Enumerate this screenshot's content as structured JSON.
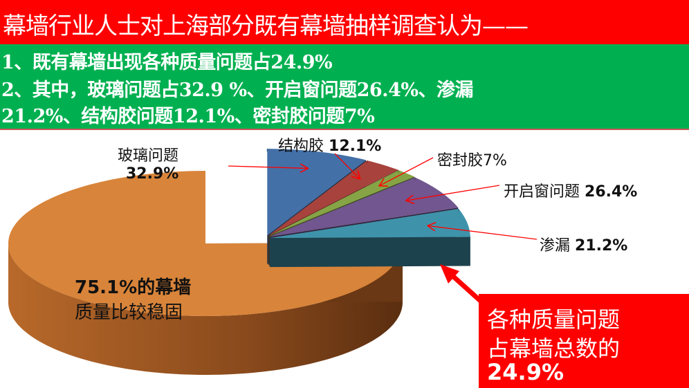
{
  "title": "幕墙行业人士对上海部分既有幕墙抽样调查认为——",
  "summary": {
    "line1": "1、既有幕墙出现各种质量问题占24.9%",
    "line2": "2、其中，玻璃问题占32.9 %、开启窗问题26.4%、渗漏",
    "line3": "21.2%、结构胶问题12.1%、密封胶问题7%"
  },
  "chart_data": {
    "type": "pie",
    "style": "3d-exploded",
    "main": [
      {
        "name": "质量比较稳固",
        "value": 75.1,
        "color": "#d8843a"
      },
      {
        "name": "各种质量问题",
        "value": 24.9
      }
    ],
    "breakdown": [
      {
        "name": "玻璃问题",
        "value": 32.9,
        "color": "#4470a8"
      },
      {
        "name": "结构胶",
        "value": 12.1,
        "color": "#a8423d"
      },
      {
        "name": "密封胶",
        "value": 7,
        "color": "#86a446"
      },
      {
        "name": "开启窗问题",
        "value": 26.4,
        "color": "#71568f"
      },
      {
        "name": "渗漏",
        "value": 21.2,
        "color": "#3e93aa"
      }
    ],
    "labels": {
      "glass_name": "玻璃问题",
      "glass_value": "32.9%",
      "struct_name": "结构胶",
      "struct_value": "12.1%",
      "seal": "密封胶7%",
      "window_name": "开启窗问题",
      "window_value": "26.4%",
      "leak_name": "渗漏",
      "leak_value": "21.2%",
      "stable_line1": "75.1%的幕墙",
      "stable_line2": "质量比较稳固"
    }
  },
  "callout": {
    "line1": "各种质量问题",
    "line2": "占幕墙总数的",
    "line3": "24.9%",
    "color": "#ff0000"
  }
}
